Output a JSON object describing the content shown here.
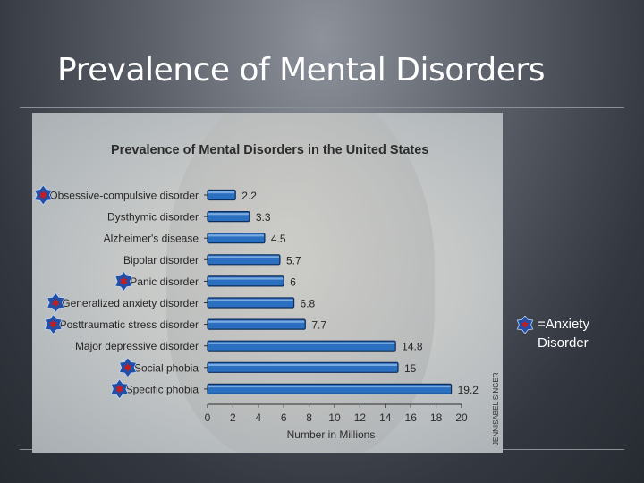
{
  "slide": {
    "title": "Prevalence of Mental Disorders",
    "credit": "JENNISABEL SINGER"
  },
  "legend": {
    "symbol": "star-icon",
    "text_line1": "=Anxiety",
    "text_line2": "Disorder"
  },
  "colors": {
    "bar": "#2a6fc0",
    "bar_edge": "#0d2c5a",
    "marker_fill": "#1f4fa8",
    "marker_center": "#cc1a1a"
  },
  "chart_data": {
    "type": "bar",
    "orientation": "horizontal",
    "title": "Prevalence of Mental Disorders in the United States",
    "xlabel": "Number in Millions",
    "ylabel": "",
    "xlim": [
      0,
      20
    ],
    "xticks": [
      0,
      2,
      4,
      6,
      8,
      10,
      12,
      14,
      16,
      18,
      20
    ],
    "categories": [
      "Obsessive-compulsive disorder",
      "Dysthymic disorder",
      "Alzheimer's disease",
      "Bipolar disorder",
      "Panic disorder",
      "Generalized anxiety disorder",
      "Posttraumatic stress disorder",
      "Major depressive disorder",
      "Social phobia",
      "Specific phobia"
    ],
    "values": [
      2.2,
      3.3,
      4.5,
      5.7,
      6,
      6.8,
      7.7,
      14.8,
      15,
      19.2
    ],
    "value_labels": [
      "2.2",
      "3.3",
      "4.5",
      "5.7",
      "6",
      "6.8",
      "7.7",
      "14.8",
      "15",
      "19.2"
    ],
    "anxiety_disorder": [
      true,
      false,
      false,
      false,
      true,
      true,
      true,
      false,
      true,
      true
    ]
  }
}
